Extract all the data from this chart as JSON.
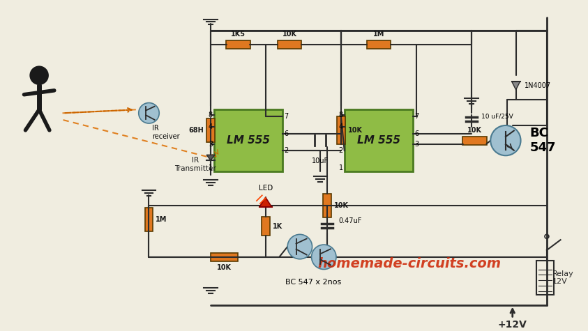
{
  "bg_color": "#f0ede0",
  "ic_color": "#8fbc45",
  "ic_border": "#4a7a20",
  "resistor_color": "#e07820",
  "wire_color": "#2c2c2c",
  "transistor_color": "#a0c0d0",
  "led_red": "#cc2200",
  "led_orange": "#ff8800",
  "person_color": "#1a1a1a",
  "title": "homemade-circuits.com",
  "title_color": "#cc2200",
  "title_fontsize": 14,
  "vcc_label": "+12V",
  "relay_label": "Relay\n12V",
  "bc547_label": "BC\n547",
  "bc547_2_label": "BC 547 x 2nos",
  "ir_tx_label": "IR\nTransmitter",
  "ir_rx_label": "IR\nreceiver",
  "led_label": "LED",
  "diode_label": "1N4007",
  "cap1_label": "10uF",
  "cap2_label": "10 uF/25V",
  "cap3_label": "0.47uF",
  "r1_label": "1K5",
  "r2_label": "10K",
  "r3_label": "68H",
  "r4_label": "10K",
  "r5_label": "1M",
  "r6_label": "10K",
  "r7_label": "1K",
  "r8_label": "10K",
  "r9_label": "1M",
  "r10_label": "10K",
  "r11_label": "10K",
  "ic1_label": "LM 555",
  "ic2_label": "LM 555"
}
